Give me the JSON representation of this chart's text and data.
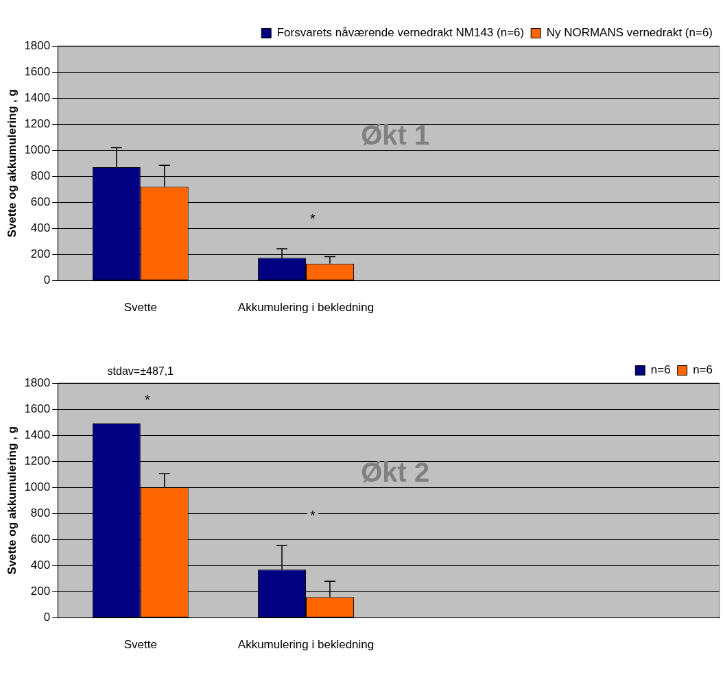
{
  "chart_data": [
    {
      "type": "bar",
      "ylabel": "Svette og akkumulering , g",
      "categories": [
        "Svette",
        "Akkumulering i bekledning",
        null,
        null
      ],
      "series": [
        {
          "name": "Forsvarets nåværende vernedrakt NM143 (n=6)",
          "color": "#000080",
          "values": [
            870,
            175,
            null,
            null
          ],
          "errors": [
            150,
            70,
            null,
            null
          ]
        },
        {
          "name": "Ny NORMANS vernedrakt (n=6)",
          "color": "#ff6600",
          "values": [
            720,
            130,
            null,
            null
          ],
          "errors": [
            165,
            55,
            null,
            null
          ]
        }
      ],
      "ylim": [
        0,
        1800
      ],
      "yticks": [
        0,
        200,
        400,
        600,
        800,
        1000,
        1200,
        1400,
        1600,
        1800
      ],
      "grid": "y",
      "legend": "top right",
      "annotations": [
        "Økt 1",
        "*"
      ]
    },
    {
      "type": "bar",
      "ylabel": "Svette og akkumulering , g",
      "categories": [
        "Svette",
        "Akkumulering i bekledning",
        null,
        null
      ],
      "series": [
        {
          "name": "n=6",
          "color": "#000080",
          "values": [
            1490,
            370,
            null,
            null
          ],
          "errors": [
            null,
            185,
            null,
            null
          ]
        },
        {
          "name": "n=6",
          "color": "#ff6600",
          "values": [
            1000,
            160,
            null,
            null
          ],
          "errors": [
            105,
            120,
            null,
            null
          ]
        }
      ],
      "ylim": [
        0,
        1800
      ],
      "yticks": [
        0,
        200,
        400,
        600,
        800,
        1000,
        1200,
        1400,
        1600,
        1800
      ],
      "grid": "y",
      "legend": "top right",
      "annotations": [
        "Økt 2",
        "stdav=±487,1",
        "*",
        "*"
      ]
    }
  ]
}
